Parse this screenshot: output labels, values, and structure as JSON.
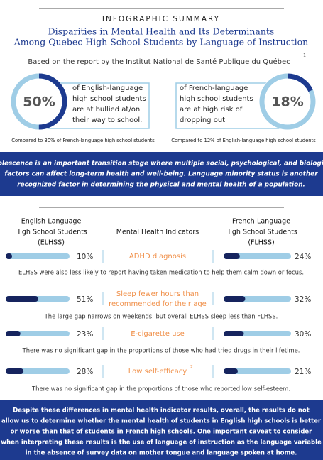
{
  "header": {
    "kicker": "INFOGRAPHIC SUMMARY",
    "title_lines": [
      "Disparities in Mental Health and Its Determinants",
      "Among Quebec High School Students by Language of Instruction"
    ],
    "source": "Based on the report by the Institut National de Santé Publique du Québec",
    "source_note": "1"
  },
  "stats": [
    {
      "value": 50,
      "label": "50%",
      "text_lines": [
        "of English-language",
        "high school students",
        "are at bullied at/on",
        "their way to school."
      ],
      "caption": "Compared to 30% of French-language high school students"
    },
    {
      "value": 18,
      "label": "18%",
      "text_lines": [
        "of French-language",
        "high school students",
        "are at high risk of",
        "dropping out"
      ],
      "caption": "Compared to 12% of English-language high school students"
    }
  ],
  "intro_lines": [
    "Adolescence is an important transition stage where multiple social, psychological, and biological",
    "factors can affect long-term health and well-being. Language minority status is another",
    "recognized factor in determining the physical and mental health of a population."
  ],
  "columns": {
    "left": [
      "English-Language",
      "High School Students",
      "(ELHSS)"
    ],
    "middle": "Mental Health Indicators",
    "right": [
      "French-Language",
      "High School Students",
      "(FLHSS)"
    ]
  },
  "indicators": [
    {
      "name_lines": [
        "ADHD diagnosis"
      ],
      "elhss": {
        "value": 10,
        "label": "10%"
      },
      "flhss": {
        "value": 24,
        "label": "24%"
      },
      "note": "ELHSS were also less likely to report having taken medication to help them calm down or focus."
    },
    {
      "name_lines": [
        "Sleep fewer hours than",
        "recommended for their age"
      ],
      "elhss": {
        "value": 51,
        "label": "51%"
      },
      "flhss": {
        "value": 32,
        "label": "32%"
      },
      "note": "The large gap narrows on weekends, but overall ELHSS sleep less than FLHSS."
    },
    {
      "name_lines": [
        "E-cigarette use"
      ],
      "elhss": {
        "value": 23,
        "label": "23%"
      },
      "flhss": {
        "value": 30,
        "label": "30%"
      },
      "note": "There was no significant gap in the proportions of those who had tried drugs in their lifetime."
    },
    {
      "name_lines": [
        "Low self-efficacy"
      ],
      "note_ref": "2",
      "elhss": {
        "value": 28,
        "label": "28%"
      },
      "flhss": {
        "value": 21,
        "label": "21%"
      },
      "note": "There was no significant gap in the proportions of those who reported low self-esteem."
    }
  ],
  "conclusion_lines": [
    "Despite these differences in mental health indicator results, overall, the results do not",
    "allow us to determine whether the mental health of students in English high schools is better",
    "or worse than that of students in French high schools. One important caveat to consider",
    "when interpreting these results is the use of language of instruction as the language variable",
    "in the absence of survey data on mother tongue and language spoken at home."
  ]
}
